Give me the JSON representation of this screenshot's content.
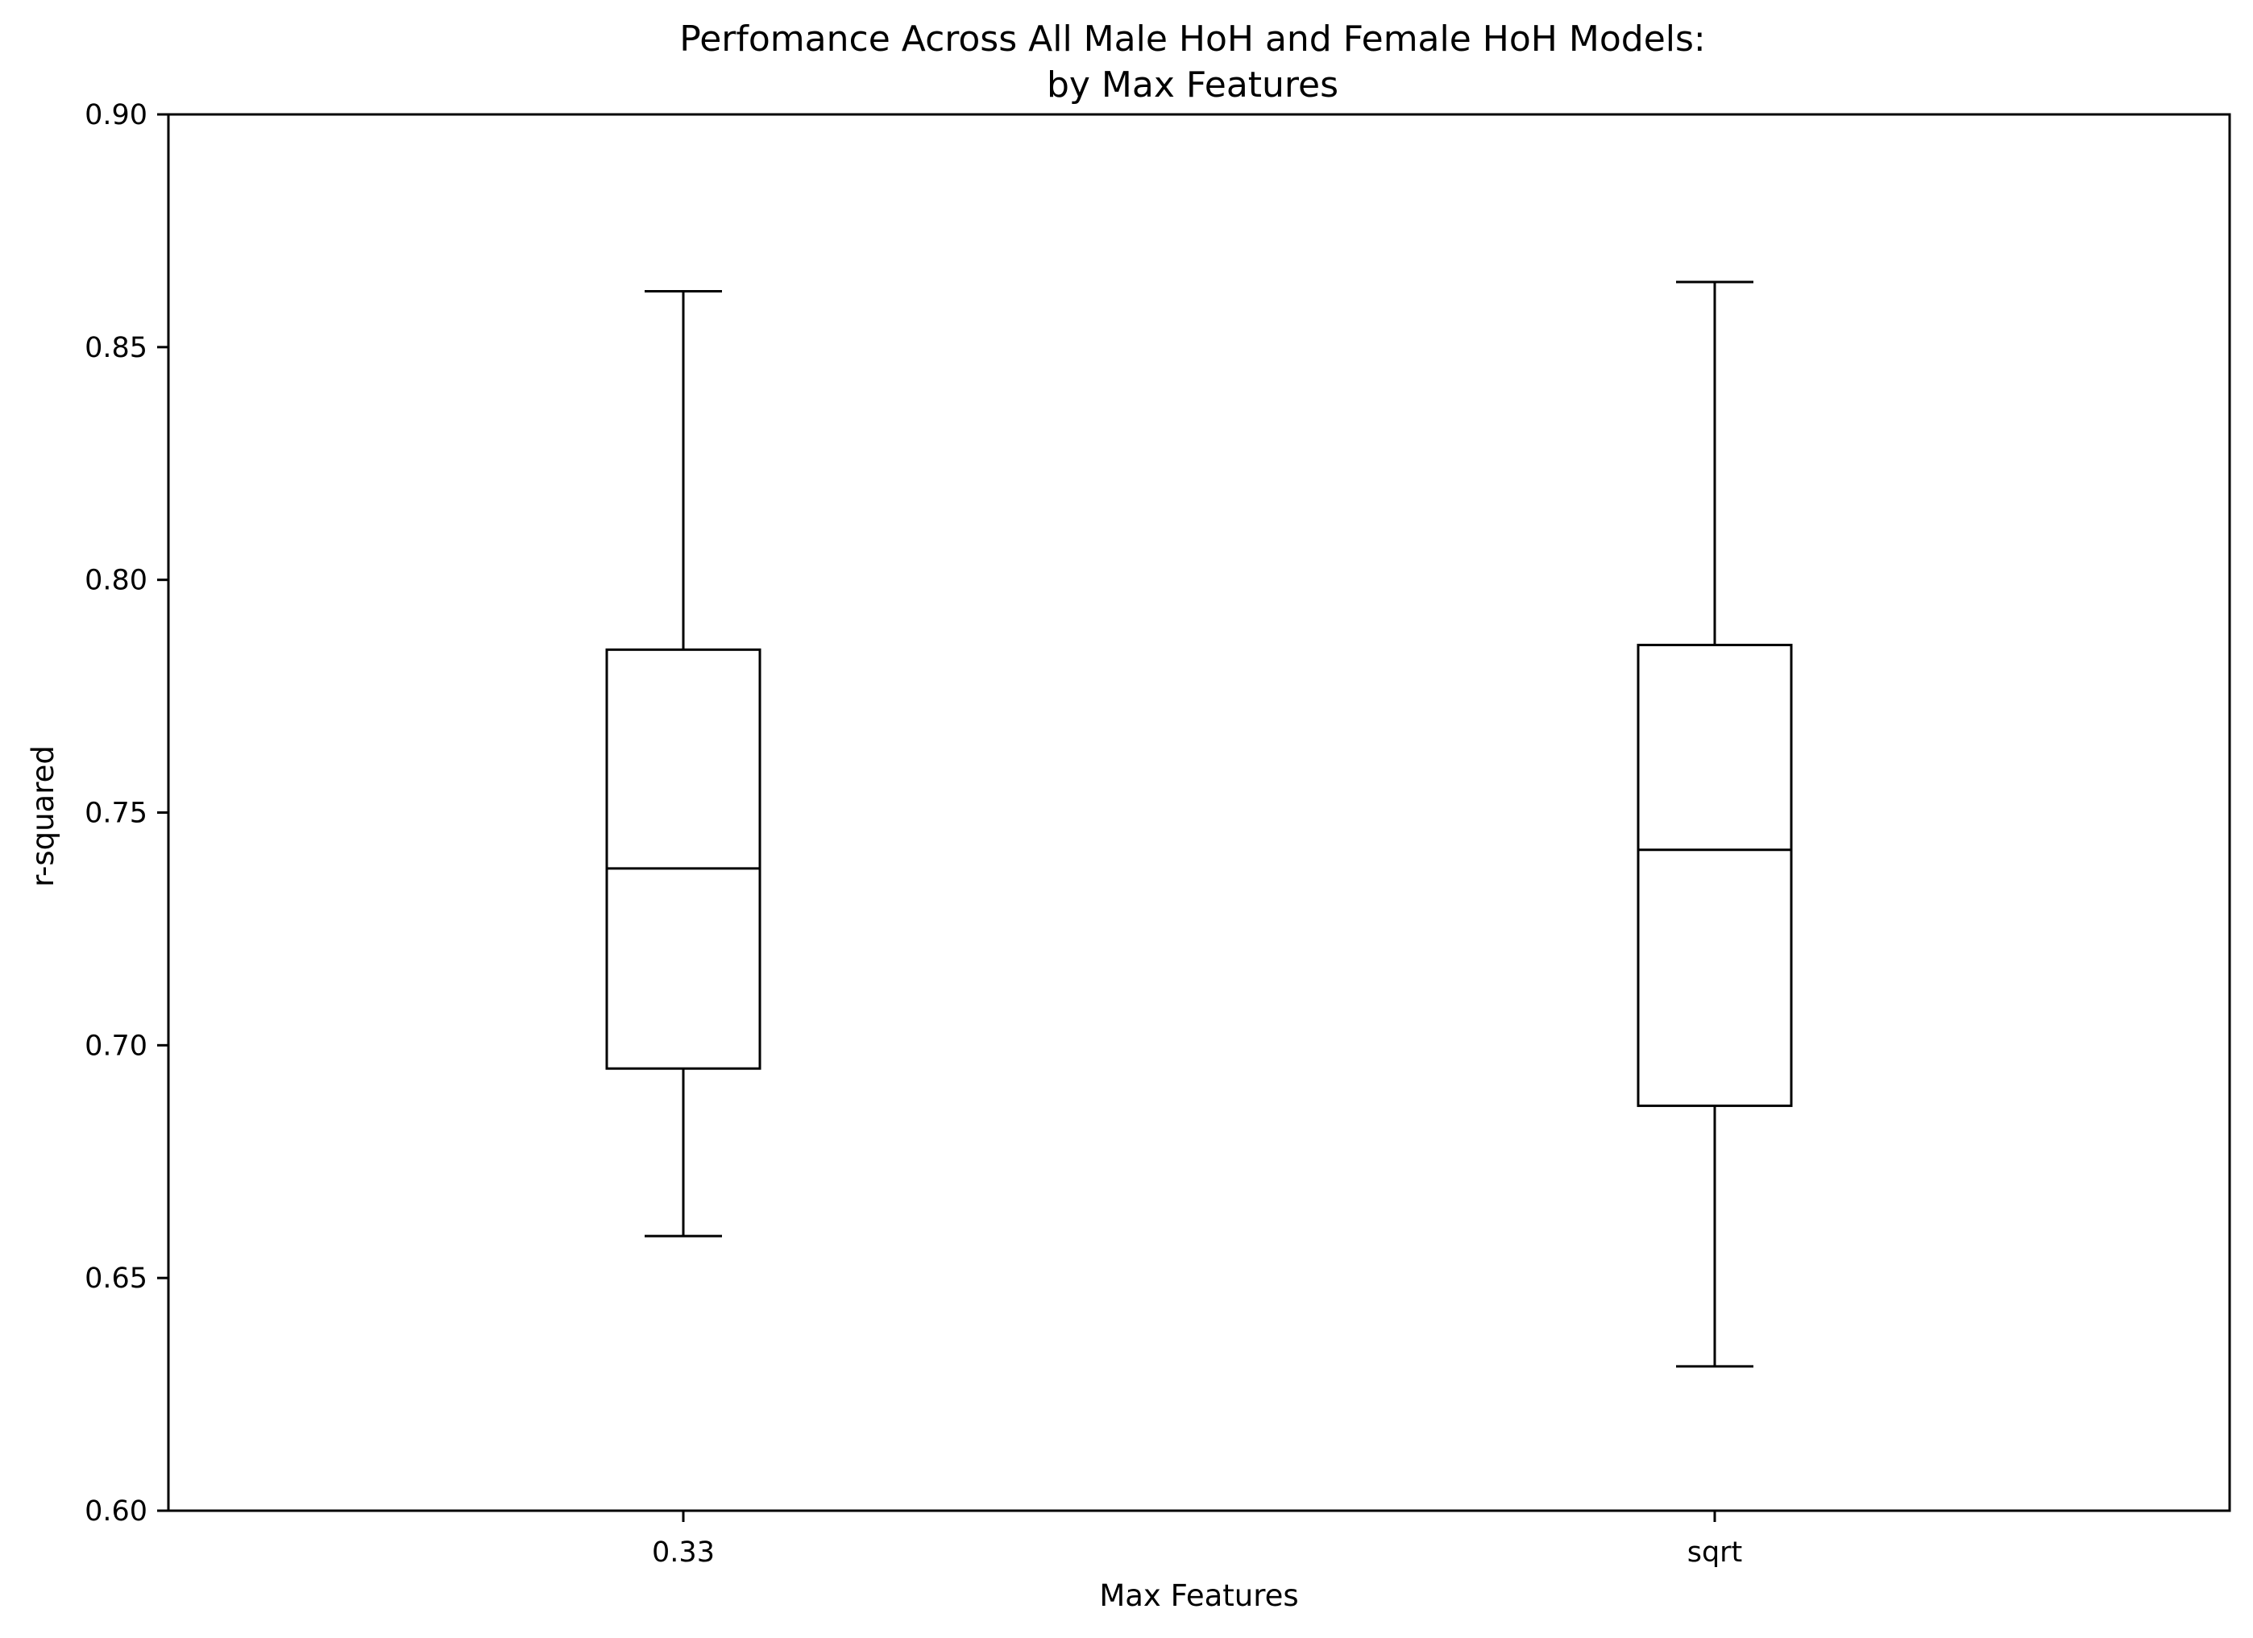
{
  "chart_data": {
    "type": "box",
    "title": "Perfomance Across All Male HoH and Female HoH Models:",
    "subtitle": "by Max Features",
    "xlabel": "Max Features",
    "ylabel": "r-squared",
    "ylim": [
      0.6,
      0.9
    ],
    "yticks": [
      "0.60",
      "0.65",
      "0.70",
      "0.75",
      "0.80",
      "0.85",
      "0.90"
    ],
    "grid": false,
    "categories": [
      "0.33",
      "sqrt"
    ],
    "boxes": [
      {
        "category": "0.33",
        "whisker_low": 0.659,
        "q1": 0.695,
        "median": 0.738,
        "q3": 0.785,
        "whisker_high": 0.862
      },
      {
        "category": "sqrt",
        "whisker_low": 0.631,
        "q1": 0.687,
        "median": 0.742,
        "q3": 0.786,
        "whisker_high": 0.864
      }
    ],
    "colors": {
      "line": "#000000",
      "background": "#ffffff"
    }
  }
}
